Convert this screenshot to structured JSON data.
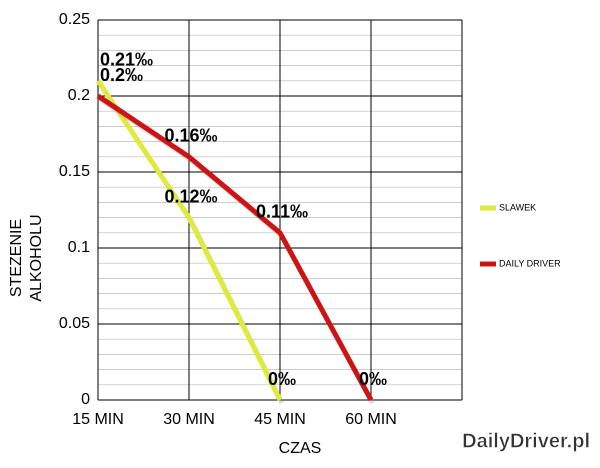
{
  "chart_data": {
    "type": "line",
    "xlabel": "CZAS",
    "ylabel": [
      "STEZENIE",
      "ALKOHOLU"
    ],
    "watermark": "DailyDriver.pl",
    "categories": [
      "15 MIN",
      "30 MIN",
      "45 MIN",
      "60 MIN",
      null
    ],
    "ylim": [
      0,
      0.25
    ],
    "yticks": [
      0,
      0.05,
      0.1,
      0.15,
      0.2,
      0.25
    ],
    "minor_step": 0.01,
    "grid": true,
    "legend": "right",
    "series": [
      {
        "name": "SLAWEK",
        "color": "#dfea3c",
        "values": [
          0.21,
          0.12,
          0,
          null,
          null
        ],
        "value_labels": [
          "0.21‰",
          "0.12‰",
          "0‰",
          null,
          null
        ]
      },
      {
        "name": "DAILY DRIVER",
        "color": "#cc1414",
        "values": [
          0.2,
          0.16,
          0.11,
          0,
          null
        ],
        "value_labels": [
          "0.2‰",
          "0.16‰",
          "0.11‰",
          "0‰",
          null
        ]
      }
    ]
  }
}
